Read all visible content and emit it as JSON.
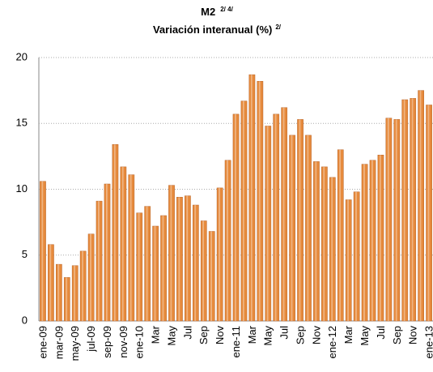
{
  "chart_data": {
    "type": "bar",
    "title": "M2",
    "title_note": "2/ 4/",
    "subtitle": "Variación interanual  (%)",
    "subtitle_note": "2/",
    "categories": [
      "ene-09",
      null,
      "mar-09",
      null,
      "may-09",
      null,
      "jul-09",
      null,
      "sep-09",
      null,
      "nov-09",
      null,
      "ene-10",
      null,
      "Mar",
      null,
      "May",
      null,
      "Jul",
      null,
      "Sep",
      null,
      "Nov",
      null,
      "ene-11",
      null,
      "Mar",
      null,
      "May",
      null,
      "Jul",
      null,
      "Sep",
      null,
      "Nov",
      null,
      "ene-12",
      null,
      "Mar",
      null,
      "May",
      null,
      "Jul",
      null,
      "Sep",
      null,
      "Nov",
      null,
      "ene-13"
    ],
    "values": [
      10.6,
      5.8,
      4.3,
      3.3,
      4.2,
      5.3,
      6.6,
      9.1,
      10.4,
      13.4,
      11.7,
      11.1,
      8.2,
      8.7,
      7.2,
      8.0,
      10.3,
      9.4,
      9.5,
      8.8,
      7.6,
      6.8,
      10.1,
      12.2,
      15.7,
      16.7,
      18.7,
      18.2,
      14.8,
      15.7,
      16.2,
      14.1,
      15.3,
      14.1,
      12.1,
      11.7,
      10.9,
      13.0,
      9.2,
      9.8,
      11.9,
      12.2,
      12.6,
      15.4,
      15.3,
      16.8,
      16.9,
      17.5,
      16.4
    ],
    "color": "#e68a3c",
    "ylim": [
      0,
      20
    ],
    "yticks": [
      0,
      5,
      10,
      15,
      20
    ],
    "grid": true
  }
}
